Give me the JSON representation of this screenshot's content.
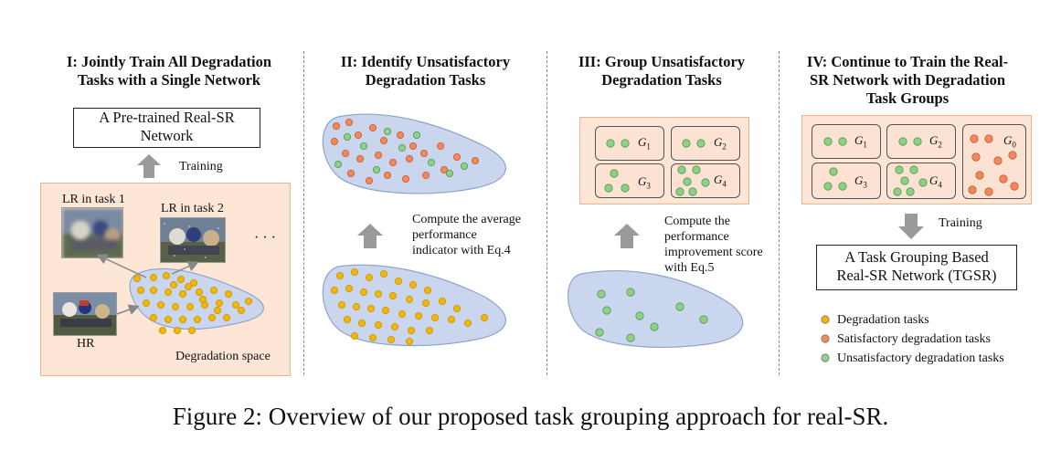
{
  "panels": {
    "p1": {
      "title_line1": "I: Jointly Train All Degradation",
      "title_line2": "Tasks with a Single Network",
      "network_line1": "A Pre-trained Real-SR",
      "network_line2": "Network",
      "training_label": "Training",
      "lr1_label": "LR in task 1",
      "lr2_label": "LR in task 2",
      "ellipsis": "· · ·",
      "hr_label": "HR",
      "space_label": "Degradation space"
    },
    "p2": {
      "title_line1": "II: Identify Unsatisfactory",
      "title_line2": "Degradation Tasks",
      "note_line1": "Compute the average",
      "note_line2": "performance",
      "note_line3": "indicator with Eq.4"
    },
    "p3": {
      "title_line1": "III: Group Unsatisfactory",
      "title_line2": "Degradation Tasks",
      "note_line1": "Compute the",
      "note_line2": "performance",
      "note_line3": "improvement score",
      "note_line4": "with Eq.5",
      "groups": [
        {
          "letter": "G",
          "sub": "1"
        },
        {
          "letter": "G",
          "sub": "2"
        },
        {
          "letter": "G",
          "sub": "3"
        },
        {
          "letter": "G",
          "sub": "4"
        }
      ]
    },
    "p4": {
      "title_line1": "IV: Continue to Train the Real-",
      "title_line2": "SR Network with Degradation",
      "title_line3": "Task Groups",
      "groups": [
        {
          "letter": "G",
          "sub": "1"
        },
        {
          "letter": "G",
          "sub": "2"
        },
        {
          "letter": "G",
          "sub": "0"
        },
        {
          "letter": "G",
          "sub": "3"
        },
        {
          "letter": "G",
          "sub": "4"
        }
      ],
      "training_label": "Training",
      "network_line1": "A Task Grouping Based",
      "network_line2": "Real-SR Network (TGSR)"
    }
  },
  "legend": [
    {
      "label": "Degradation tasks",
      "color": "#f2b705"
    },
    {
      "label": "Satisfactory degradation tasks",
      "color": "#f08a5d"
    },
    {
      "label": "Unsatisfactory degradation tasks",
      "color": "#8fcf8a"
    }
  ],
  "caption": "Figure 2: Overview of our proposed task grouping approach for real-SR.",
  "colors": {
    "yellow_dot": "#f2b705",
    "orange_dot": "#f08a5d",
    "green_dot": "#8fcf8a",
    "blob_fill": "#c9d6ee",
    "peach_bg": "#fde6d6",
    "arrow_gray": "#9a9a9a"
  }
}
